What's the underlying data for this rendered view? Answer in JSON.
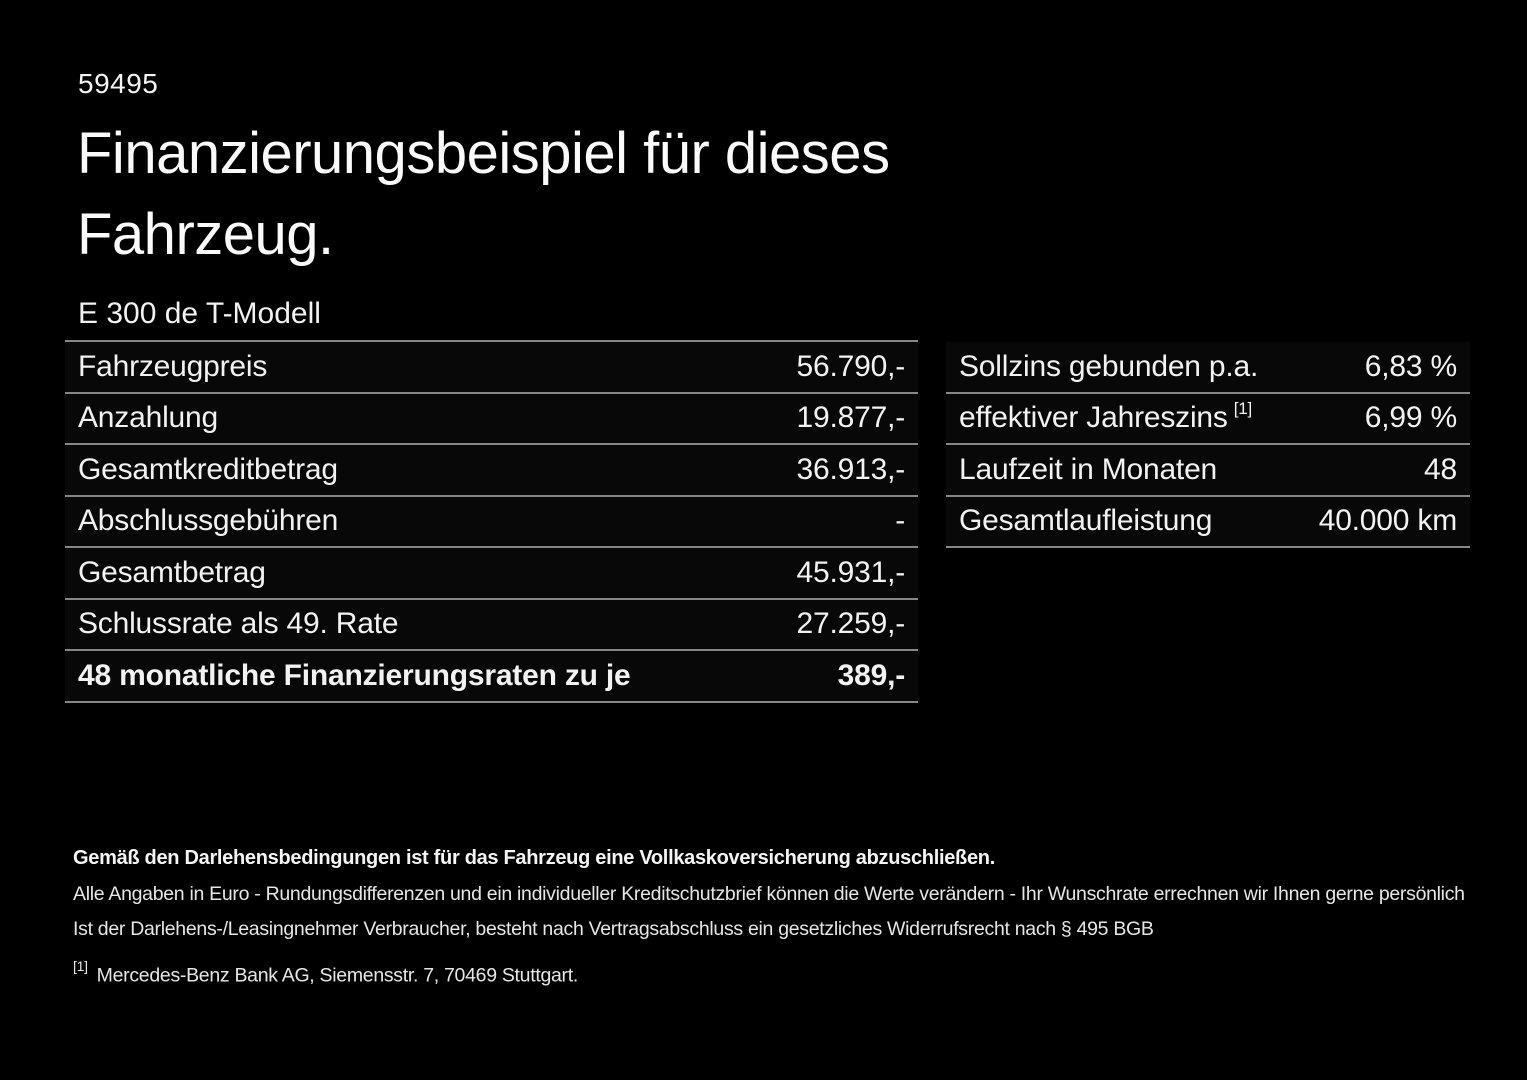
{
  "page": {
    "id_number": "59495",
    "title_line1": "Finanzierungsbeispiel für dieses",
    "title_line2": "Fahrzeug.",
    "model": "E 300 de T-Modell"
  },
  "left_table": {
    "rows": [
      {
        "label": "Fahrzeugpreis",
        "value": "56.790,-"
      },
      {
        "label": "Anzahlung",
        "value": "19.877,-"
      },
      {
        "label": "Gesamtkreditbetrag",
        "value": "36.913,-"
      },
      {
        "label": "Abschlussgebühren",
        "value": "-"
      },
      {
        "label": "Gesamtbetrag",
        "value": "45.931,-"
      },
      {
        "label": "Schlussrate als 49. Rate",
        "value": "27.259,-"
      },
      {
        "label": "48 monatliche Finanzierungsraten zu je",
        "value": "389,-"
      }
    ]
  },
  "right_table": {
    "rows": [
      {
        "label": "Sollzins gebunden p.a.",
        "footnote": "",
        "value": "6,83 %"
      },
      {
        "label": "effektiver Jahreszins",
        "footnote": "[1]",
        "value": "6,99 %"
      },
      {
        "label": "Laufzeit in Monaten",
        "footnote": "",
        "value": "48"
      },
      {
        "label": "Gesamtlaufleistung",
        "footnote": "",
        "value": "40.000 km"
      }
    ]
  },
  "footer": {
    "bold_note": "Gemäß den Darlehensbedingungen ist für das Fahrzeug eine Vollkaskoversicherung abzuschließen.",
    "note1": "Alle Angaben in Euro - Rundungsdifferenzen und ein individueller Kreditschutzbrief können die Werte verändern - Ihr Wunschrate errechnen wir Ihnen gerne persönlich",
    "note2": "Ist der Darlehens-/Leasingnehmer Verbraucher, besteht nach Vertragsabschluss ein gesetzliches Widerrufsrecht nach § 495 BGB",
    "footnote_marker": "[1]",
    "footnote_text": "Mercedes-Benz Bank AG, Siemensstr. 7, 70469 Stuttgart."
  },
  "colors": {
    "background": "#000000",
    "text": "#f2f2f2",
    "divider": "#868686"
  }
}
